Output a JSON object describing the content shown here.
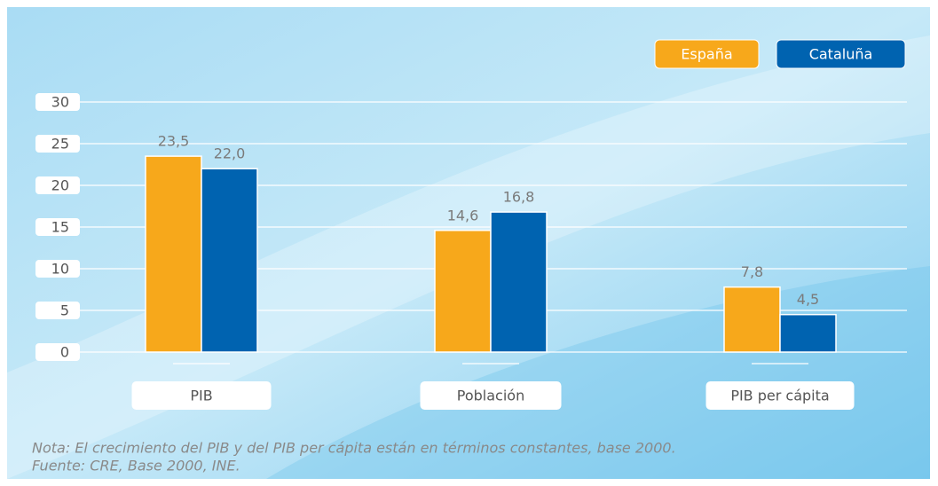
{
  "chart_data": {
    "type": "bar",
    "categories": [
      "PIB",
      "Población",
      "PIB per cápita"
    ],
    "series": [
      {
        "name": "España",
        "color": "#f7a81b",
        "values": [
          23.5,
          14.6,
          7.8
        ],
        "value_labels": [
          "23,5",
          "14,6",
          "7,8"
        ]
      },
      {
        "name": "Cataluña",
        "color": "#0063b0",
        "values": [
          22.0,
          16.8,
          4.5
        ],
        "value_labels": [
          "22,0",
          "16,8",
          "4,5"
        ]
      }
    ],
    "ylim": [
      0,
      30
    ],
    "yticks": [
      0,
      5,
      10,
      15,
      20,
      25,
      30
    ],
    "grid": true,
    "notes": [
      "Nota: El crecimiento del PIB y del PIB per cápita están en términos constantes, base 2000.",
      "Fuente: CRE, Base 2000, INE."
    ]
  }
}
